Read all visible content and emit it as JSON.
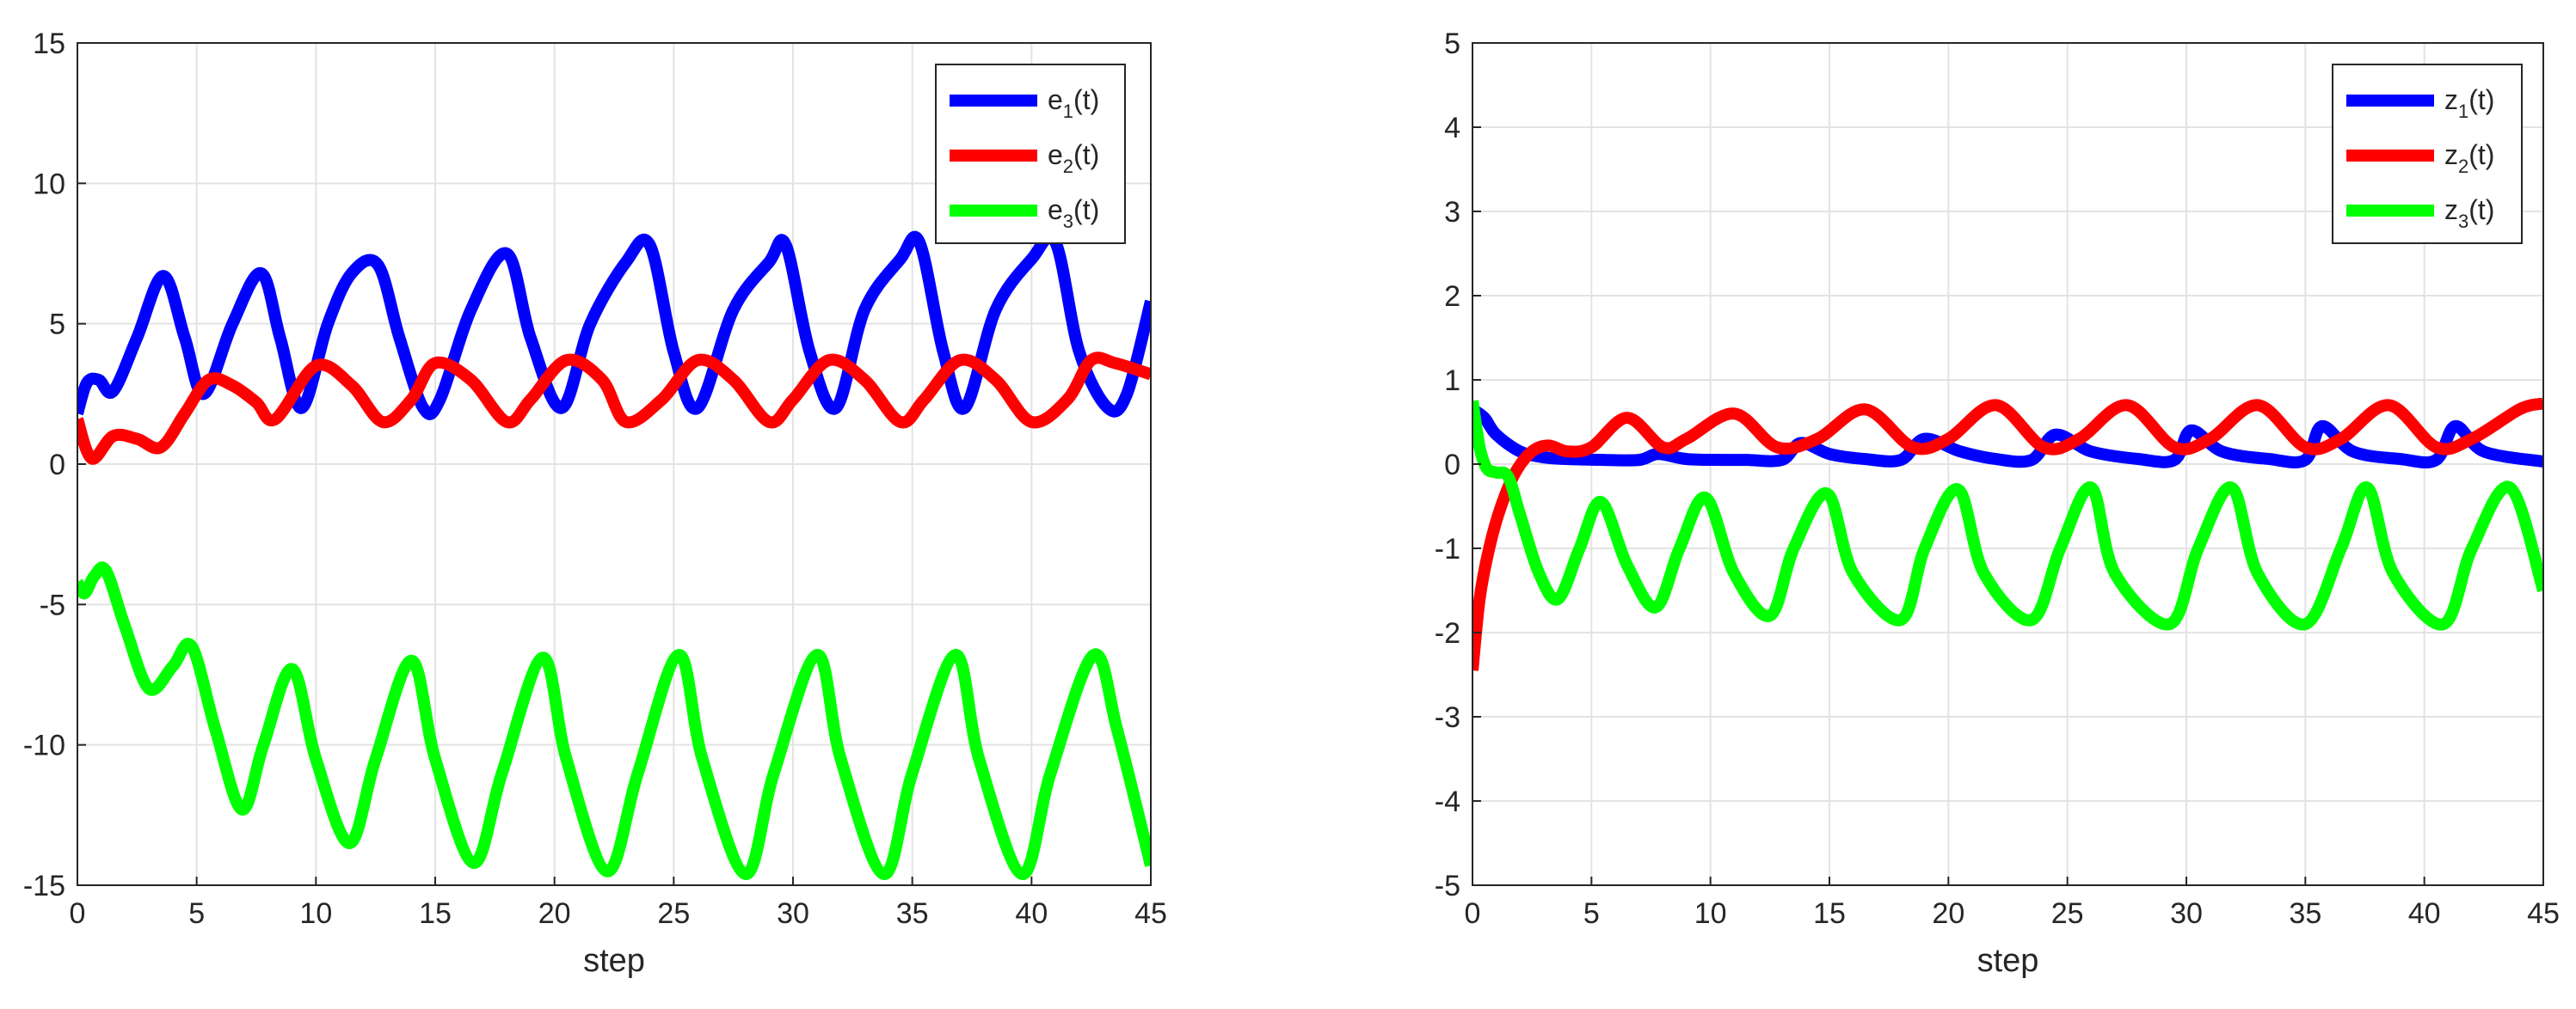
{
  "chart_data": [
    {
      "type": "line",
      "xlabel": "step",
      "ylabel": "",
      "xlim": [
        0,
        45
      ],
      "ylim": [
        -15,
        15
      ],
      "xticks": [
        0,
        5,
        10,
        15,
        20,
        25,
        30,
        35,
        40,
        45
      ],
      "yticks": [
        -15,
        -10,
        -5,
        0,
        5,
        10,
        15
      ],
      "xtick_labels": [
        "0",
        "5",
        "10",
        "15",
        "20",
        "25",
        "30",
        "35",
        "40",
        "45"
      ],
      "ytick_labels": [
        "-15",
        "-10",
        "-5",
        "0",
        "5",
        "10",
        "15"
      ],
      "grid": true,
      "legend_position": "top-right",
      "series": [
        {
          "name": "e1(t)",
          "legend": {
            "base": "e",
            "sub": "1",
            "suffix": "(t)"
          },
          "color": "#0000ff",
          "x": [
            0,
            0.4,
            0.9,
            1.5,
            2.5,
            3.6,
            4.5,
            5.3,
            6.5,
            7.7,
            8.5,
            9.4,
            10.5,
            11.5,
            12.6,
            13.5,
            14.5,
            15.2,
            16.5,
            18.0,
            19.0,
            20.3,
            21.5,
            23.0,
            24.0,
            25.0,
            26.0,
            27.5,
            29.0,
            29.7,
            30.7,
            31.8,
            33.0,
            34.5,
            35.3,
            36.3,
            37.2,
            38.5,
            40.0,
            41.0,
            42.0,
            43.2,
            44.0,
            45.0
          ],
          "y": [
            1.8,
            2.9,
            3.0,
            2.6,
            4.5,
            6.7,
            4.5,
            2.5,
            5.0,
            6.8,
            4.5,
            2.0,
            5.0,
            6.8,
            7.1,
            4.5,
            2.0,
            2.3,
            5.5,
            7.5,
            4.5,
            2.0,
            5.0,
            7.2,
            7.8,
            4.0,
            2.0,
            5.5,
            7.2,
            7.8,
            4.0,
            2.0,
            5.5,
            7.3,
            7.9,
            4.0,
            2.0,
            5.5,
            7.3,
            7.9,
            4.0,
            2.0,
            2.5,
            5.8
          ]
        },
        {
          "name": "e2(t)",
          "legend": {
            "base": "e",
            "sub": "2",
            "suffix": "(t)"
          },
          "color": "#ff0000",
          "x": [
            0,
            0.6,
            1.5,
            2.5,
            3.5,
            4.5,
            5.5,
            6.5,
            7.5,
            8.3,
            10.0,
            11.5,
            12.8,
            14.0,
            15.0,
            16.5,
            18.0,
            19.0,
            20.5,
            22.0,
            23.0,
            24.5,
            26.0,
            27.5,
            29.0,
            30.0,
            31.5,
            33.0,
            34.5,
            35.5,
            37.0,
            38.5,
            40.0,
            41.5,
            42.5,
            43.5,
            45.0
          ],
          "y": [
            1.6,
            0.2,
            1.0,
            0.9,
            0.6,
            1.8,
            3.0,
            2.8,
            2.2,
            1.6,
            3.5,
            2.8,
            1.5,
            2.3,
            3.6,
            3.0,
            1.5,
            2.3,
            3.7,
            3.0,
            1.5,
            2.3,
            3.7,
            3.0,
            1.5,
            2.3,
            3.7,
            3.0,
            1.5,
            2.3,
            3.7,
            3.0,
            1.5,
            2.3,
            3.7,
            3.6,
            3.2
          ]
        },
        {
          "name": "e3(t)",
          "legend": {
            "base": "e",
            "sub": "3",
            "suffix": "(t)"
          },
          "color": "#00ff00",
          "x": [
            0,
            0.3,
            0.7,
            1.2,
            2.0,
            3.0,
            4.0,
            4.8,
            5.8,
            6.9,
            7.8,
            9.0,
            10.0,
            11.4,
            12.5,
            14.0,
            15.0,
            16.6,
            17.8,
            19.5,
            20.5,
            22.2,
            23.5,
            25.2,
            26.2,
            28.0,
            29.2,
            31.0,
            32.0,
            33.8,
            35.0,
            36.8,
            37.8,
            39.6,
            40.8,
            42.6,
            43.6,
            45.0
          ],
          "y": [
            -4.2,
            -4.6,
            -4.0,
            -3.8,
            -5.8,
            -8.0,
            -7.2,
            -6.5,
            -9.5,
            -12.3,
            -10.0,
            -7.3,
            -10.5,
            -13.5,
            -10.5,
            -7.0,
            -10.5,
            -14.2,
            -11.0,
            -6.9,
            -10.5,
            -14.5,
            -11.0,
            -6.8,
            -10.5,
            -14.6,
            -11.0,
            -6.8,
            -10.5,
            -14.6,
            -11.0,
            -6.8,
            -10.5,
            -14.6,
            -11.0,
            -6.8,
            -9.5,
            -14.3
          ]
        }
      ]
    },
    {
      "type": "line",
      "xlabel": "step",
      "ylabel": "",
      "xlim": [
        0,
        45
      ],
      "ylim": [
        -5,
        5
      ],
      "xticks": [
        0,
        5,
        10,
        15,
        20,
        25,
        30,
        35,
        40,
        45
      ],
      "yticks": [
        -5,
        -4,
        -3,
        -2,
        -1,
        0,
        1,
        2,
        3,
        4,
        5
      ],
      "xtick_labels": [
        "0",
        "5",
        "10",
        "15",
        "20",
        "25",
        "30",
        "35",
        "40",
        "45"
      ],
      "ytick_labels": [
        "-5",
        "-4",
        "-3",
        "-2",
        "-1",
        "0",
        "1",
        "2",
        "3",
        "4",
        "5"
      ],
      "grid": true,
      "legend_position": "top-right",
      "series": [
        {
          "name": "z1(t)",
          "legend": {
            "base": "z",
            "sub": "1",
            "suffix": "(t)"
          },
          "color": "#0000ff",
          "x": [
            0,
            0.5,
            1.0,
            2.0,
            3.0,
            4.0,
            5.5,
            7.0,
            7.8,
            9.0,
            10.5,
            11.5,
            13.0,
            13.8,
            15.0,
            16.5,
            18.0,
            19.0,
            20.5,
            22.0,
            23.5,
            24.5,
            26.0,
            28.0,
            29.5,
            30.2,
            31.5,
            33.5,
            35.0,
            35.7,
            37.0,
            39.0,
            40.5,
            41.3,
            42.5,
            45.0
          ],
          "y": [
            0.65,
            0.55,
            0.35,
            0.15,
            0.08,
            0.06,
            0.05,
            0.05,
            0.12,
            0.06,
            0.05,
            0.05,
            0.05,
            0.25,
            0.12,
            0.06,
            0.05,
            0.3,
            0.15,
            0.06,
            0.05,
            0.35,
            0.15,
            0.06,
            0.05,
            0.4,
            0.15,
            0.06,
            0.05,
            0.45,
            0.15,
            0.06,
            0.05,
            0.45,
            0.15,
            0.03
          ]
        },
        {
          "name": "z2(t)",
          "legend": {
            "base": "z",
            "sub": "2",
            "suffix": "(t)"
          },
          "color": "#ff0000",
          "x": [
            0,
            0.3,
            0.7,
            1.2,
            1.8,
            2.5,
            3.2,
            4.0,
            5.0,
            6.5,
            8.0,
            9.0,
            11.0,
            12.8,
            14.5,
            16.5,
            18.5,
            20.0,
            22.0,
            24.0,
            25.5,
            27.5,
            29.5,
            31.0,
            33.0,
            35.0,
            36.5,
            38.5,
            40.5,
            42.0,
            44.0,
            45.0
          ],
          "y": [
            -2.45,
            -1.6,
            -1.0,
            -0.5,
            -0.1,
            0.15,
            0.22,
            0.15,
            0.2,
            0.55,
            0.2,
            0.3,
            0.6,
            0.2,
            0.3,
            0.65,
            0.2,
            0.3,
            0.7,
            0.2,
            0.3,
            0.7,
            0.2,
            0.3,
            0.7,
            0.2,
            0.3,
            0.7,
            0.2,
            0.3,
            0.65,
            0.72
          ]
        },
        {
          "name": "z3(t)",
          "legend": {
            "base": "z",
            "sub": "3",
            "suffix": "(t)"
          },
          "color": "#00ff00",
          "x": [
            0,
            0.3,
            0.6,
            1.0,
            1.5,
            2.0,
            2.8,
            3.6,
            4.5,
            5.4,
            6.5,
            7.7,
            8.7,
            9.8,
            11.0,
            12.5,
            13.5,
            14.9,
            16.0,
            18.0,
            19.0,
            20.4,
            21.5,
            23.5,
            24.7,
            26.0,
            27.0,
            29.3,
            30.5,
            31.9,
            33.0,
            35.0,
            36.5,
            37.6,
            38.7,
            40.8,
            42.0,
            43.6,
            45.0
          ],
          "y": [
            0.75,
            0.2,
            -0.05,
            -0.1,
            -0.15,
            -0.6,
            -1.3,
            -1.6,
            -1.0,
            -0.45,
            -1.2,
            -1.7,
            -1.0,
            -0.4,
            -1.3,
            -1.8,
            -1.0,
            -0.35,
            -1.3,
            -1.85,
            -1.0,
            -0.3,
            -1.3,
            -1.85,
            -1.0,
            -0.28,
            -1.3,
            -1.9,
            -1.0,
            -0.28,
            -1.3,
            -1.9,
            -1.0,
            -0.28,
            -1.3,
            -1.9,
            -1.0,
            -0.28,
            -1.5
          ]
        }
      ]
    }
  ]
}
